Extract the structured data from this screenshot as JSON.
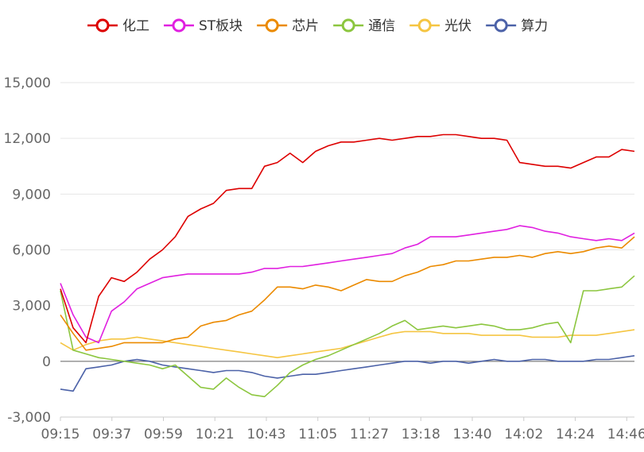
{
  "chart_data": {
    "type": "line",
    "title": "",
    "xlabel": "",
    "ylabel": "",
    "ylim": [
      -3000,
      15000
    ],
    "y_ticks": [
      -3000,
      0,
      3000,
      6000,
      9000,
      12000,
      15000
    ],
    "y_tick_labels": [
      "-3,000",
      "0",
      "3,000",
      "6,000",
      "9,000",
      "12,000",
      "15,000"
    ],
    "x_tick_labels": [
      "09:15",
      "09:37",
      "09:59",
      "10:21",
      "10:43",
      "11:05",
      "11:27",
      "13:18",
      "13:40",
      "14:02",
      "14:24",
      "14:46"
    ],
    "x_points": [
      "09:15",
      "09:20",
      "09:26",
      "09:31",
      "09:37",
      "09:42",
      "09:48",
      "09:53",
      "09:59",
      "10:04",
      "10:10",
      "10:15",
      "10:21",
      "10:26",
      "10:32",
      "10:37",
      "10:43",
      "10:48",
      "10:54",
      "10:59",
      "11:05",
      "11:10",
      "11:16",
      "11:21",
      "11:27",
      "13:07",
      "13:12",
      "13:18",
      "13:23",
      "13:29",
      "13:34",
      "13:40",
      "13:45",
      "13:51",
      "13:56",
      "14:02",
      "14:07",
      "14:13",
      "14:18",
      "14:24",
      "14:29",
      "14:35",
      "14:40",
      "14:46",
      "14:51",
      "14:57"
    ],
    "grid": true,
    "legend_position": "top-center",
    "series": [
      {
        "name": "化工",
        "color": "#dd0000",
        "values": [
          3900,
          1800,
          1000,
          3500,
          4500,
          4300,
          4800,
          5500,
          6000,
          6700,
          7800,
          8200,
          8500,
          9200,
          9300,
          9300,
          10500,
          10700,
          11200,
          10700,
          11300,
          11600,
          11800,
          11800,
          11900,
          12000,
          11900,
          12000,
          12100,
          12100,
          12200,
          12200,
          12100,
          12000,
          12000,
          11900,
          10700,
          10600,
          10500,
          10500,
          10400,
          10700,
          11000,
          11000,
          11400,
          11300
        ]
      },
      {
        "name": "ST板块",
        "color": "#e020e0",
        "values": [
          4200,
          2500,
          1300,
          1000,
          2700,
          3200,
          3900,
          4200,
          4500,
          4600,
          4700,
          4700,
          4700,
          4700,
          4700,
          4800,
          5000,
          5000,
          5100,
          5100,
          5200,
          5300,
          5400,
          5500,
          5600,
          5700,
          5800,
          6100,
          6300,
          6700,
          6700,
          6700,
          6800,
          6900,
          7000,
          7100,
          7300,
          7200,
          7000,
          6900,
          6700,
          6600,
          6500,
          6600,
          6500,
          6900
        ]
      },
      {
        "name": "芯片",
        "color": "#eb8a00",
        "values": [
          2500,
          1500,
          600,
          700,
          800,
          1000,
          1000,
          1000,
          1000,
          1200,
          1300,
          1900,
          2100,
          2200,
          2500,
          2700,
          3300,
          4000,
          4000,
          3900,
          4100,
          4000,
          3800,
          4100,
          4400,
          4300,
          4300,
          4600,
          4800,
          5100,
          5200,
          5400,
          5400,
          5500,
          5600,
          5600,
          5700,
          5600,
          5800,
          5900,
          5800,
          5900,
          6100,
          6200,
          6100,
          6700
        ]
      },
      {
        "name": "通信",
        "color": "#8cc63f",
        "values": [
          3800,
          600,
          400,
          200,
          100,
          0,
          -100,
          -200,
          -400,
          -200,
          -800,
          -1400,
          -1500,
          -900,
          -1400,
          -1800,
          -1900,
          -1300,
          -600,
          -200,
          100,
          300,
          600,
          900,
          1200,
          1500,
          1900,
          2200,
          1700,
          1800,
          1900,
          1800,
          1900,
          2000,
          1900,
          1700,
          1700,
          1800,
          2000,
          2100,
          1000,
          3800,
          3800,
          3900,
          4000,
          4600
        ]
      },
      {
        "name": "光伏",
        "color": "#f5c542",
        "values": [
          1000,
          600,
          900,
          1100,
          1200,
          1200,
          1300,
          1200,
          1100,
          1000,
          900,
          800,
          700,
          600,
          500,
          400,
          300,
          200,
          300,
          400,
          500,
          600,
          700,
          900,
          1100,
          1300,
          1500,
          1600,
          1600,
          1600,
          1500,
          1500,
          1500,
          1400,
          1400,
          1400,
          1400,
          1300,
          1300,
          1300,
          1400,
          1400,
          1400,
          1500,
          1600,
          1700
        ]
      },
      {
        "name": "算力",
        "color": "#4c62a8",
        "values": [
          -1500,
          -1600,
          -400,
          -300,
          -200,
          0,
          100,
          0,
          -200,
          -300,
          -400,
          -500,
          -600,
          -500,
          -500,
          -600,
          -800,
          -900,
          -800,
          -700,
          -700,
          -600,
          -500,
          -400,
          -300,
          -200,
          -100,
          0,
          0,
          -100,
          0,
          0,
          -100,
          0,
          100,
          0,
          0,
          100,
          100,
          0,
          0,
          0,
          100,
          100,
          200,
          300
        ]
      }
    ]
  }
}
